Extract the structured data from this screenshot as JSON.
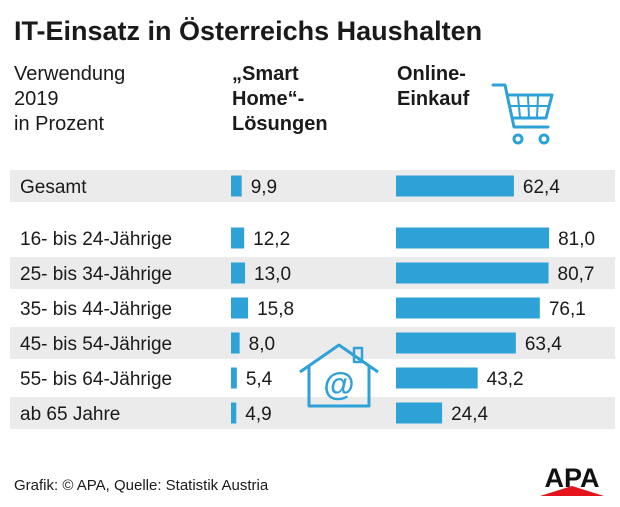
{
  "title": "IT-Einsatz in Österreichs Haushalten",
  "subtitle_lines": [
    "Verwendung",
    "2019",
    "in Prozent"
  ],
  "footer": "Grafik: © APA, Quelle: Statistik Austria",
  "logo_text": "APA",
  "colors": {
    "bar": "#2ea2d6",
    "row_band": "#ebebeb",
    "icon": "#2ea2d6",
    "logo_triangle": "#e3141b",
    "logo_text": "#111111"
  },
  "chart_data": {
    "type": "bar",
    "orientation": "horizontal",
    "categories": [
      "Gesamt",
      "16- bis 24-Jährige",
      "25- bis 34-Jährige",
      "35- bis 44-Jährige",
      "45- bis 54-Jährige",
      "55- bis 64-Jährige",
      "ab 65 Jahre"
    ],
    "series": [
      {
        "name_lines": [
          "„Smart",
          "Home“-",
          "Lösungen"
        ],
        "values": [
          9.9,
          12.2,
          13.0,
          15.8,
          8.0,
          5.4,
          4.9
        ],
        "value_labels": [
          "9,9",
          "12,2",
          "13,0",
          "15,8",
          "8,0",
          "5,4",
          "4,9"
        ]
      },
      {
        "name_lines": [
          "Online-",
          "Einkauf"
        ],
        "values": [
          62.4,
          81.0,
          80.7,
          76.1,
          63.4,
          43.2,
          24.4
        ],
        "value_labels": [
          "62,4",
          "81,0",
          "80,7",
          "76,1",
          "63,4",
          "43,2",
          "24,4"
        ]
      }
    ],
    "unit": "Prozent",
    "icons": [
      "shopping-cart-icon",
      "house-at-icon"
    ]
  }
}
